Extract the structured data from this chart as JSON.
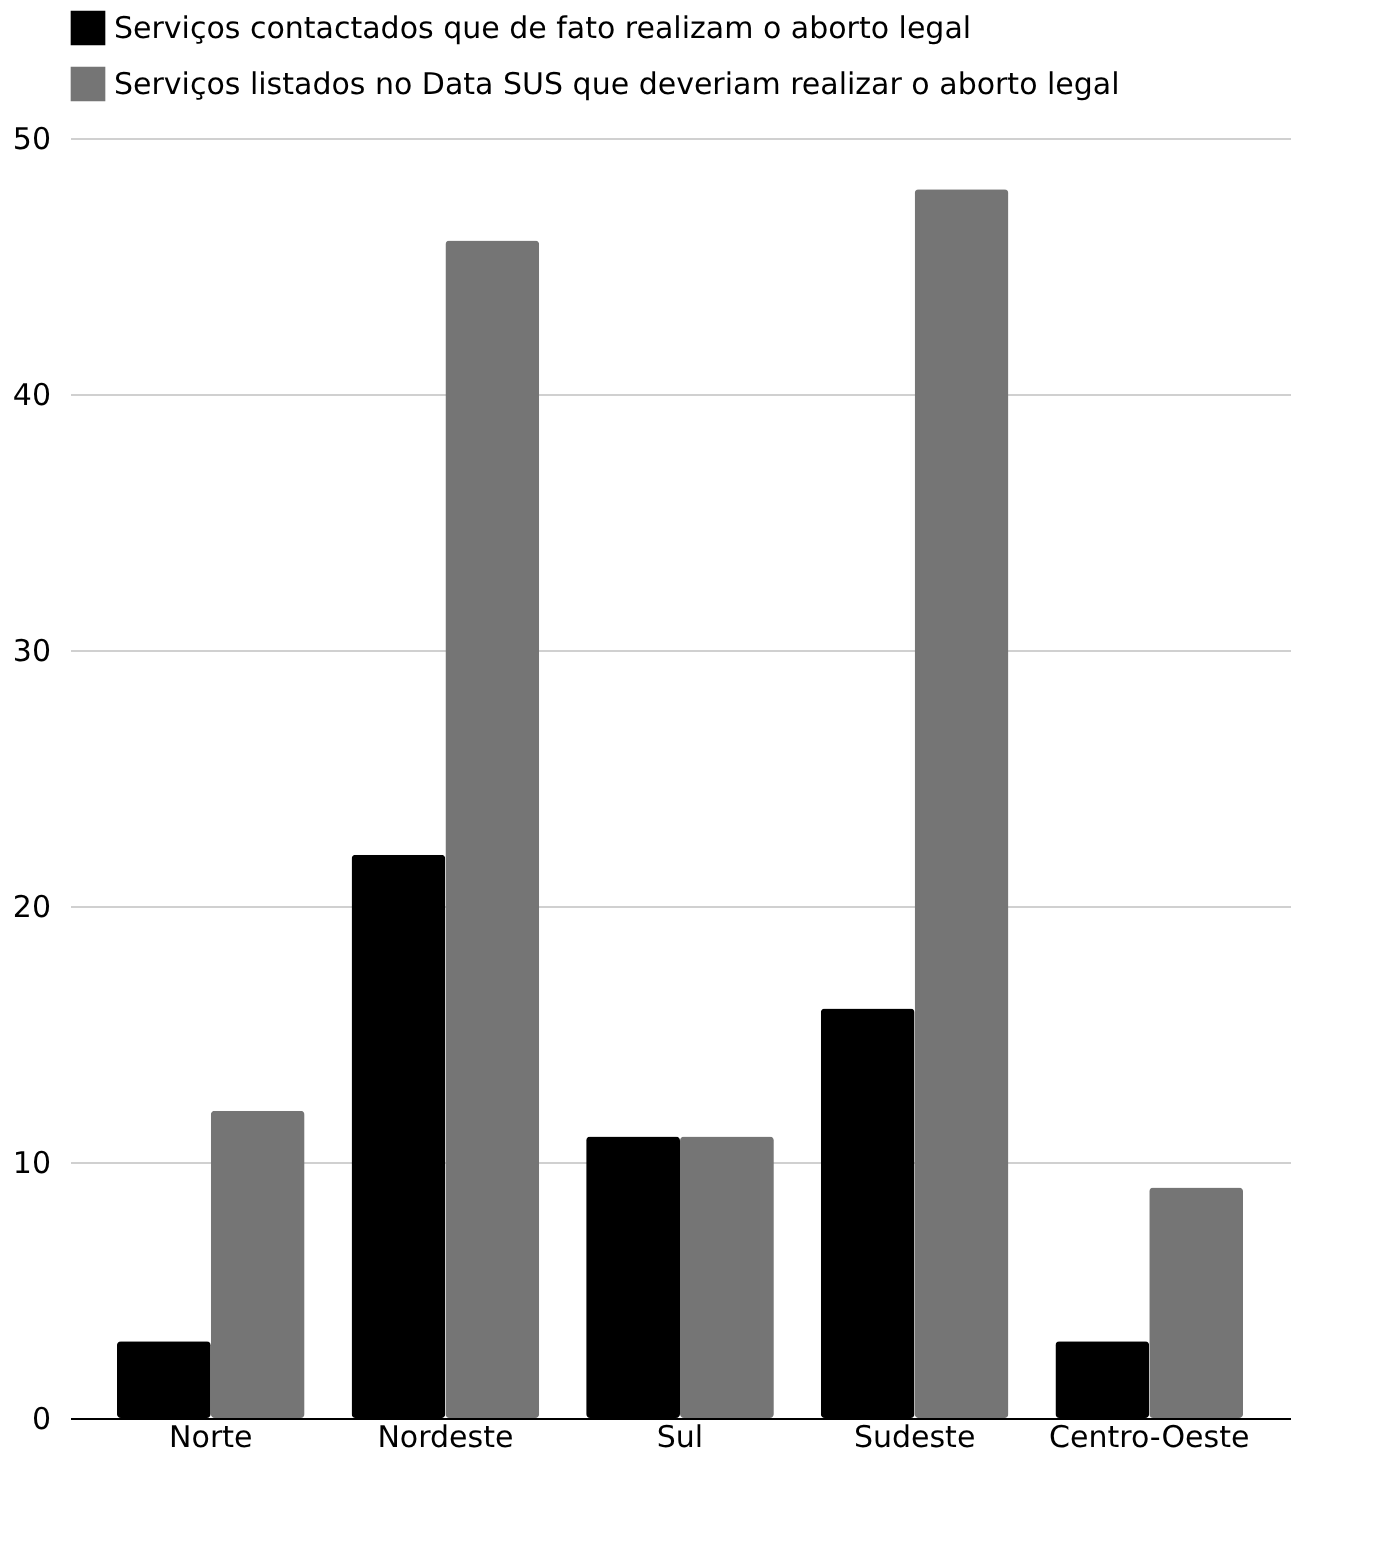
{
  "chart_data": {
    "type": "bar",
    "categories": [
      "Norte",
      "Nordeste",
      "Sul",
      "Sudeste",
      "Centro-Oeste"
    ],
    "series": [
      {
        "name": "Serviços contactados que de fato realizam o aborto legal",
        "color": "#000000",
        "values": [
          3,
          22,
          11,
          16,
          3
        ]
      },
      {
        "name": "Serviços listados no Data SUS que deveriam realizar o aborto legal",
        "color": "#757575",
        "values": [
          12,
          46,
          11,
          48,
          9
        ]
      }
    ],
    "ylim": [
      0,
      50
    ],
    "yticks": [
      0,
      10,
      20,
      30,
      40,
      50
    ],
    "grid": "y",
    "legend": "top"
  }
}
